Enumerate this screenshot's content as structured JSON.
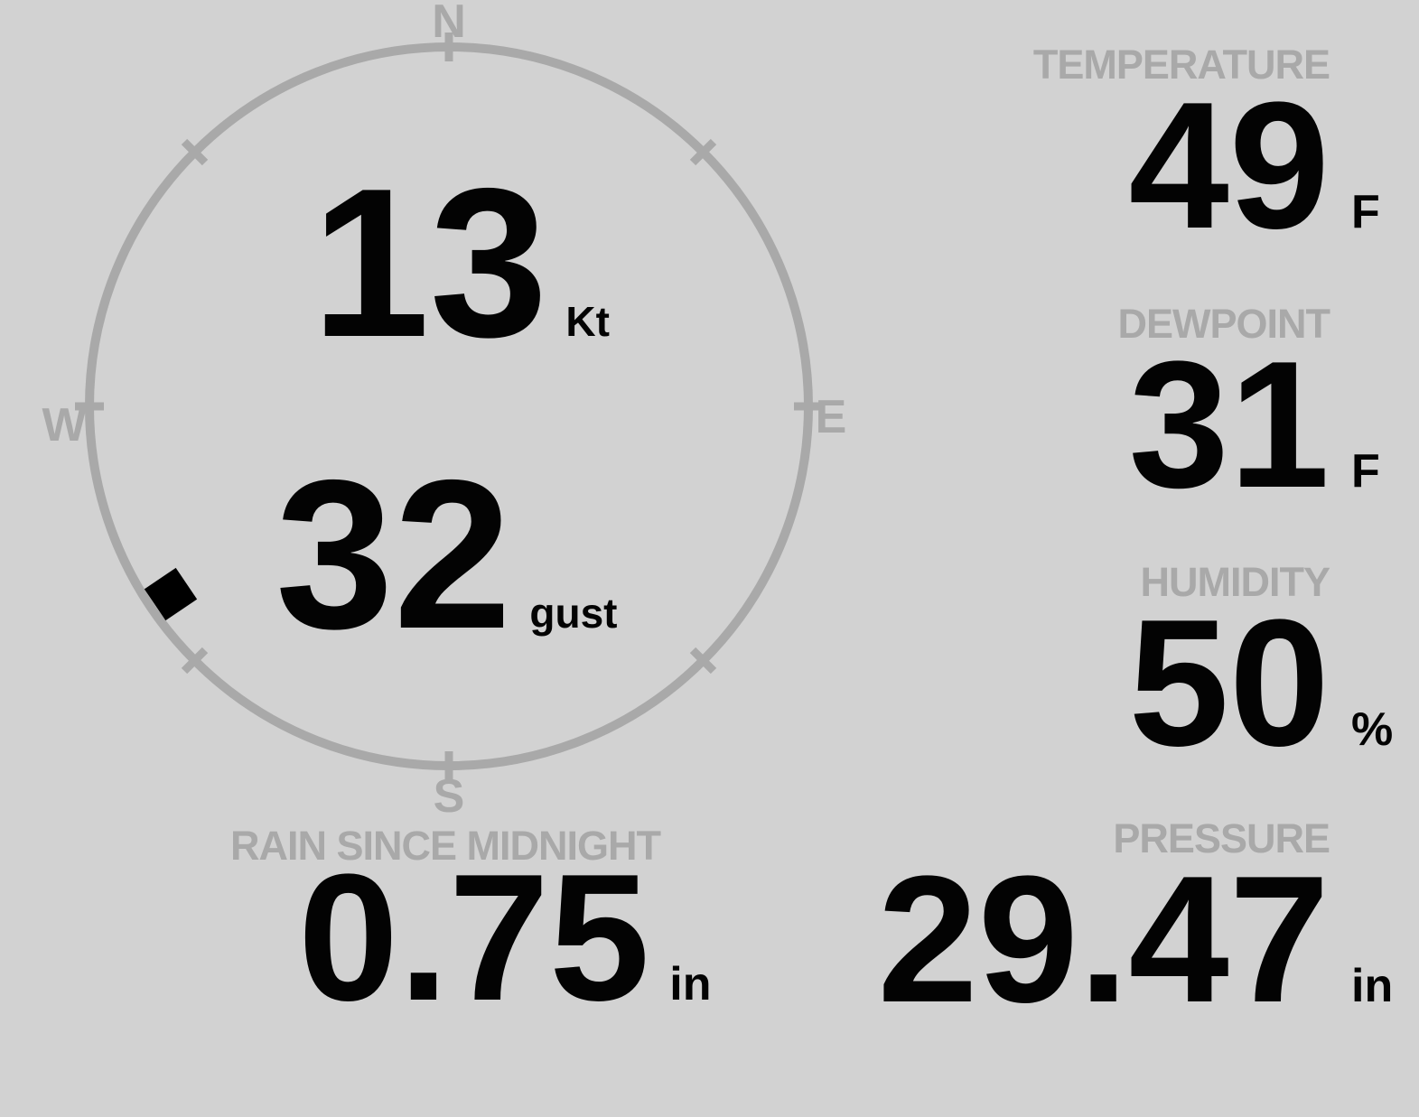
{
  "colors": {
    "background": "#d2d2d2",
    "muted_gray": "#a9a9a9",
    "value_black": "#030303"
  },
  "compass": {
    "cardinals": {
      "n": "N",
      "e": "E",
      "s": "S",
      "w": "W"
    },
    "speed": {
      "value": "13",
      "unit": "Kt"
    },
    "gust": {
      "value": "32",
      "unit": "gust"
    },
    "marker": {
      "bearing_deg": 236
    }
  },
  "stats": {
    "temperature": {
      "label": "TEMPERATURE",
      "value": "49",
      "unit": "F"
    },
    "dewpoint": {
      "label": "DEWPOINT",
      "value": "31",
      "unit": "F"
    },
    "humidity": {
      "label": "HUMIDITY",
      "value": "50",
      "unit": "%"
    },
    "rain": {
      "label": "RAIN SINCE MIDNIGHT",
      "value": "0.75",
      "unit": "in"
    },
    "pressure": {
      "label": "PRESSURE",
      "value": "29.47",
      "unit": "in"
    }
  }
}
